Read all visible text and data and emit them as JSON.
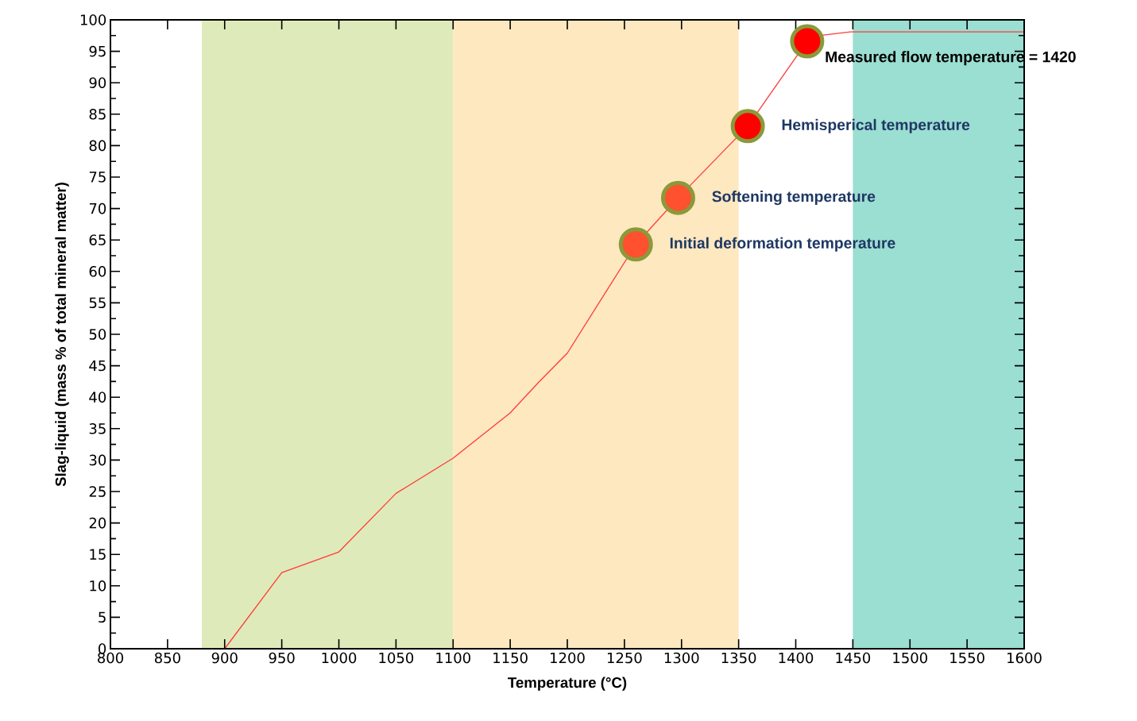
{
  "chart_data": {
    "type": "line",
    "xlabel": "Temperature (°C)",
    "ylabel": "Slag-liquid (mass % of total mineral matter)",
    "xlim": [
      800,
      1600
    ],
    "xticks": [
      800,
      850,
      900,
      950,
      1000,
      1050,
      1100,
      1150,
      1200,
      1250,
      1300,
      1350,
      1400,
      1450,
      1500,
      1550,
      1600
    ],
    "ylim": [
      0,
      100
    ],
    "yticks": [
      0,
      5,
      10,
      15,
      20,
      25,
      30,
      35,
      40,
      45,
      50,
      55,
      60,
      65,
      70,
      75,
      80,
      85,
      90,
      95,
      100
    ],
    "grid": false,
    "bands": [
      {
        "axis": "x",
        "from": 880,
        "to": 1100,
        "color": "#dfeaba"
      },
      {
        "axis": "x",
        "from": 1100,
        "to": 1350,
        "color": "#fee8c0"
      },
      {
        "axis": "x",
        "from": 1450,
        "to": 1600,
        "color": "#9bded2"
      }
    ],
    "series": [
      {
        "color": "#ff3b3b",
        "marker": "none",
        "x": [
          900,
          950,
          1000,
          1050,
          1100,
          1150,
          1175,
          1200,
          1260,
          1297,
          1358,
          1410,
          1420,
          1448,
          1600
        ],
        "values": [
          0,
          12.1,
          15.4,
          24.7,
          30.3,
          37.5,
          42.4,
          47,
          64.3,
          71.7,
          83.1,
          96.6,
          97.5,
          98.1,
          98.1
        ]
      },
      {
        "type": "scatter",
        "marker": "circle",
        "colors": [
          "#ff5030",
          "#ff5030",
          "#ff0000",
          "#ff0000"
        ],
        "x": [
          1260,
          1297,
          1358,
          1410
        ],
        "values": [
          64.3,
          71.7,
          83.1,
          96.6
        ]
      }
    ],
    "annotations": [
      {
        "text": "Initial deformation temperature",
        "x": 1260,
        "y": 64.3
      },
      {
        "text": "Softening temperature",
        "x": 1297,
        "y": 71.7
      },
      {
        "text": "Hemisperical temperature",
        "x": 1358,
        "y": 83.1
      },
      {
        "text": "Measured flow temperature = 1420",
        "x": 1410,
        "y": 96.6
      }
    ]
  }
}
